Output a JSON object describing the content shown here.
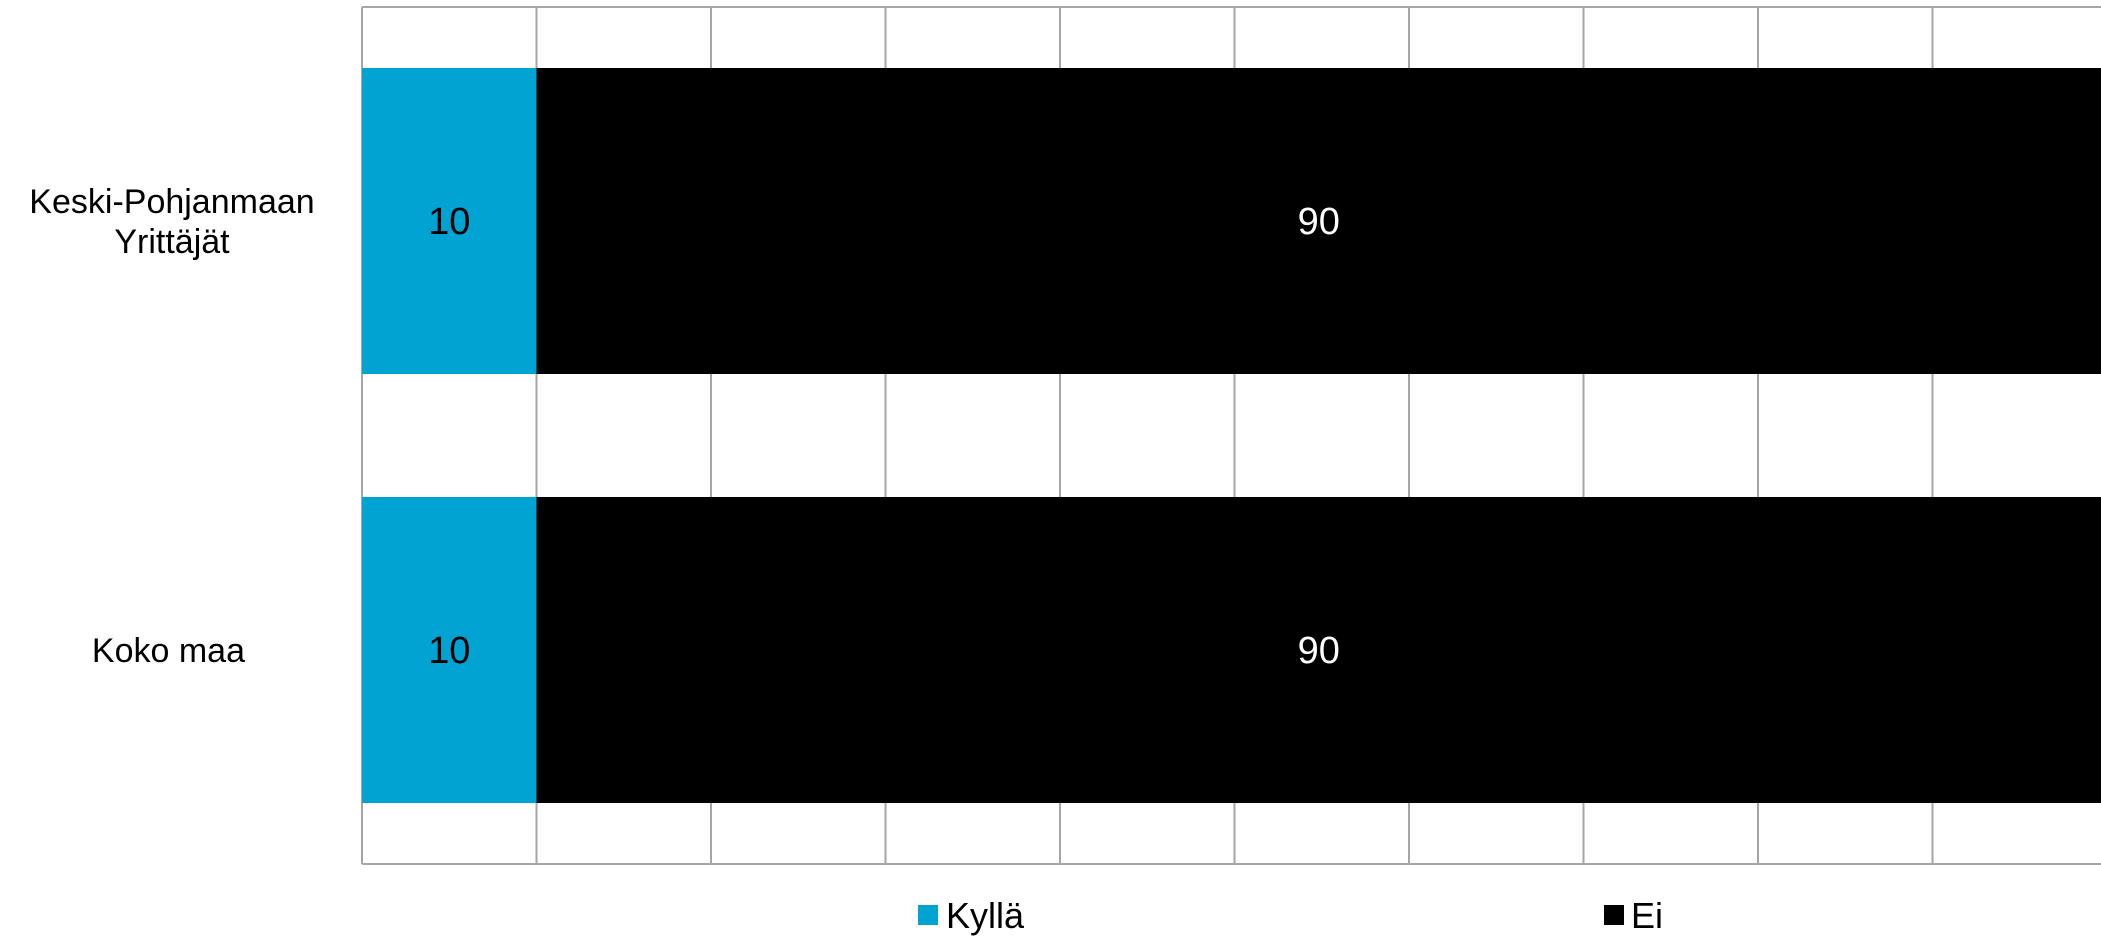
{
  "chart_data": {
    "type": "bar",
    "orientation": "horizontal",
    "stacked": true,
    "categories": [
      "Keski-Pohjanmaan Yrittäjät",
      "Koko maa"
    ],
    "category_label_lines": [
      [
        "Keski-Pohjanmaan",
        "Yrittäjät"
      ],
      [
        "Koko maa"
      ]
    ],
    "series": [
      {
        "name": "Kyllä",
        "color": "#00a3d1",
        "label_color": "#000000",
        "values": [
          10,
          10
        ]
      },
      {
        "name": "Ei",
        "color": "#000000",
        "label_color": "#ffffff",
        "values": [
          90,
          90
        ]
      }
    ],
    "xlim": [
      0,
      100
    ],
    "grid_step": 10,
    "grid": true,
    "legend_position": "bottom"
  }
}
